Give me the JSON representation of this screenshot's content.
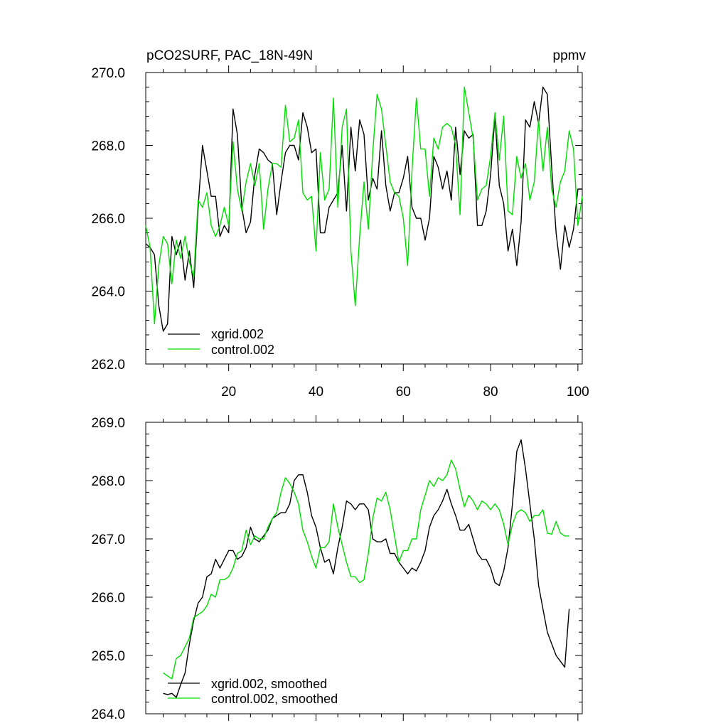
{
  "chart_data": [
    {
      "type": "line",
      "title": "pCO2SURF, PAC_18N-49N",
      "units": "ppmv",
      "xlim": [
        1,
        101
      ],
      "ylim": [
        262.0,
        270.0
      ],
      "xticks": [
        20,
        40,
        60,
        80,
        100
      ],
      "xtick_labels": [
        "20",
        "40",
        "60",
        "80",
        "100"
      ],
      "yticks": [
        262.0,
        264.0,
        266.0,
        268.0,
        270.0
      ],
      "ytick_labels": [
        "262.0",
        "264.0",
        "266.0",
        "268.0",
        "270.0"
      ],
      "legend_position": "bottom-left",
      "series": [
        {
          "name": "xgrid.002",
          "color": "#000000",
          "x": [
            1,
            2,
            3,
            4,
            5,
            6,
            7,
            8,
            9,
            10,
            11,
            12,
            13,
            14,
            15,
            16,
            17,
            18,
            19,
            20,
            21,
            22,
            23,
            24,
            25,
            26,
            27,
            28,
            29,
            30,
            31,
            32,
            33,
            34,
            35,
            36,
            37,
            38,
            39,
            40,
            41,
            42,
            43,
            44,
            45,
            46,
            47,
            48,
            49,
            50,
            51,
            52,
            53,
            54,
            55,
            56,
            57,
            58,
            59,
            60,
            61,
            62,
            63,
            64,
            65,
            66,
            67,
            68,
            69,
            70,
            71,
            72,
            73,
            74,
            75,
            76,
            77,
            78,
            79,
            80,
            81,
            82,
            83,
            84,
            85,
            86,
            87,
            88,
            89,
            90,
            91,
            92,
            93,
            94,
            95,
            96,
            97,
            98,
            99,
            100,
            101
          ],
          "values": [
            265.3,
            265.2,
            265.0,
            263.6,
            262.9,
            263.1,
            265.5,
            265.0,
            265.4,
            264.3,
            265.1,
            264.1,
            266.3,
            268.0,
            267.3,
            266.6,
            266.6,
            265.5,
            265.8,
            265.6,
            269.0,
            268.3,
            266.3,
            265.6,
            265.9,
            267.2,
            267.9,
            267.8,
            267.6,
            267.5,
            266.1,
            267.0,
            267.8,
            268.0,
            268.0,
            267.6,
            268.9,
            268.5,
            267.8,
            267.9,
            265.6,
            265.6,
            266.3,
            266.5,
            266.7,
            268.0,
            266.2,
            268.5,
            267.3,
            268.7,
            268.3,
            266.5,
            267.1,
            266.8,
            268.4,
            266.9,
            266.2,
            266.7,
            266.7,
            267.1,
            267.7,
            266.3,
            266.0,
            266.0,
            265.4,
            266.0,
            267.7,
            267.4,
            266.8,
            267.3,
            266.5,
            268.5,
            267.2,
            268.4,
            268.2,
            268.3,
            265.8,
            265.8,
            266.2,
            267.2,
            268.8,
            266.9,
            266.4,
            265.1,
            265.7,
            264.7,
            265.9,
            268.7,
            268.5,
            269.2,
            268.6,
            269.6,
            269.4,
            267.4,
            265.6,
            264.6,
            265.8,
            265.2,
            265.7,
            266.8,
            266.8
          ]
        },
        {
          "name": "control.002",
          "color": "#00dd00",
          "x": [
            1,
            2,
            3,
            4,
            5,
            6,
            7,
            8,
            9,
            10,
            11,
            12,
            13,
            14,
            15,
            16,
            17,
            18,
            19,
            20,
            21,
            22,
            23,
            24,
            25,
            26,
            27,
            28,
            29,
            30,
            31,
            32,
            33,
            34,
            35,
            36,
            37,
            38,
            39,
            40,
            41,
            42,
            43,
            44,
            45,
            46,
            47,
            48,
            49,
            50,
            51,
            52,
            53,
            54,
            55,
            56,
            57,
            58,
            59,
            60,
            61,
            62,
            63,
            64,
            65,
            66,
            67,
            68,
            69,
            70,
            71,
            72,
            73,
            74,
            75,
            76,
            77,
            78,
            79,
            80,
            81,
            82,
            83,
            84,
            85,
            86,
            87,
            88,
            89,
            90,
            91,
            92,
            93,
            94,
            95,
            96,
            97,
            98,
            99,
            100,
            101
          ],
          "values": [
            265.8,
            265.2,
            263.1,
            264.7,
            265.5,
            265.3,
            264.2,
            265.4,
            264.9,
            265.5,
            264.8,
            264.4,
            266.5,
            266.3,
            266.7,
            265.8,
            265.5,
            265.8,
            266.3,
            265.8,
            268.1,
            266.8,
            266.2,
            267.0,
            267.5,
            266.9,
            267.5,
            265.7,
            266.8,
            267.5,
            267.5,
            267.4,
            269.1,
            268.1,
            268.2,
            268.7,
            266.7,
            266.5,
            266.6,
            265.1,
            267.8,
            266.5,
            266.8,
            269.3,
            266.3,
            268.5,
            269.0,
            265.1,
            263.6,
            265.5,
            267.0,
            265.7,
            267.8,
            269.4,
            269.0,
            268.0,
            267.0,
            266.7,
            266.6,
            266.0,
            264.7,
            267.3,
            269.3,
            267.9,
            267.9,
            266.6,
            268.2,
            267.9,
            268.5,
            268.6,
            268.5,
            268.0,
            266.1,
            269.6,
            268.9,
            268.2,
            266.5,
            266.8,
            266.9,
            267.7,
            268.9,
            267.6,
            268.8,
            266.2,
            266.1,
            267.7,
            267.1,
            267.5,
            266.5,
            267.0,
            268.7,
            267.3,
            268.5,
            266.8,
            266.3,
            267.0,
            267.3,
            268.4,
            267.9,
            265.8,
            266.6
          ]
        }
      ]
    },
    {
      "type": "line",
      "ylim": [
        264.0,
        269.0
      ],
      "xlim": [
        1,
        101
      ],
      "yticks": [
        264.0,
        265.0,
        266.0,
        267.0,
        268.0,
        269.0
      ],
      "ytick_labels": [
        "264.0",
        "265.0",
        "266.0",
        "267.0",
        "268.0",
        "269.0"
      ],
      "xticks": [
        20,
        40,
        60,
        80,
        100
      ],
      "legend_position": "bottom-left",
      "series": [
        {
          "name": "xgrid.002, smoothed",
          "color": "#000000",
          "x": [
            5,
            6,
            7,
            8,
            9,
            10,
            11,
            12,
            13,
            14,
            15,
            16,
            17,
            18,
            19,
            20,
            21,
            22,
            23,
            24,
            25,
            26,
            27,
            28,
            29,
            30,
            31,
            32,
            33,
            34,
            35,
            36,
            37,
            38,
            39,
            40,
            41,
            42,
            43,
            44,
            45,
            46,
            47,
            48,
            49,
            50,
            51,
            52,
            53,
            54,
            55,
            56,
            57,
            58,
            59,
            60,
            61,
            62,
            63,
            64,
            65,
            66,
            67,
            68,
            69,
            70,
            71,
            72,
            73,
            74,
            75,
            76,
            77,
            78,
            79,
            80,
            81,
            82,
            83,
            84,
            85,
            86,
            87,
            88,
            89,
            90,
            91,
            92,
            93,
            94,
            95,
            96,
            97,
            98
          ],
          "values": [
            264.35,
            264.33,
            264.35,
            264.28,
            264.5,
            264.7,
            265.2,
            265.6,
            265.9,
            266.0,
            266.35,
            266.4,
            266.65,
            266.5,
            266.65,
            266.8,
            266.8,
            266.65,
            266.7,
            266.85,
            267.2,
            267.0,
            266.95,
            267.05,
            267.15,
            267.35,
            267.4,
            267.45,
            267.45,
            267.6,
            268.0,
            268.1,
            268.1,
            267.8,
            267.4,
            267.2,
            266.85,
            266.6,
            266.65,
            266.4,
            266.85,
            267.2,
            267.65,
            267.6,
            267.5,
            267.6,
            267.6,
            267.5,
            267.0,
            266.95,
            266.95,
            267.0,
            266.75,
            266.75,
            266.6,
            266.5,
            266.4,
            266.5,
            266.45,
            266.6,
            266.8,
            267.2,
            267.4,
            267.5,
            267.65,
            267.85,
            267.6,
            267.4,
            267.15,
            267.15,
            267.25,
            267.0,
            266.75,
            266.65,
            266.65,
            266.5,
            266.25,
            266.2,
            266.45,
            266.85,
            267.6,
            268.5,
            268.7,
            268.2,
            267.6,
            267.0,
            266.2,
            265.8,
            265.4,
            265.2,
            265.0,
            264.9,
            264.8,
            265.8
          ]
        },
        {
          "name": "control.002, smoothed",
          "color": "#00dd00",
          "x": [
            5,
            6,
            7,
            8,
            9,
            10,
            11,
            12,
            13,
            14,
            15,
            16,
            17,
            18,
            19,
            20,
            21,
            22,
            23,
            24,
            25,
            26,
            27,
            28,
            29,
            30,
            31,
            32,
            33,
            34,
            35,
            36,
            37,
            38,
            39,
            40,
            41,
            42,
            43,
            44,
            45,
            46,
            47,
            48,
            49,
            50,
            51,
            52,
            53,
            54,
            55,
            56,
            57,
            58,
            59,
            60,
            61,
            62,
            63,
            64,
            65,
            66,
            67,
            68,
            69,
            70,
            71,
            72,
            73,
            74,
            75,
            76,
            77,
            78,
            79,
            80,
            81,
            82,
            83,
            84,
            85,
            86,
            87,
            88,
            89,
            90,
            91,
            92,
            93,
            94,
            95,
            96,
            97,
            98
          ],
          "values": [
            264.7,
            264.65,
            264.6,
            264.95,
            265.0,
            265.15,
            265.3,
            265.65,
            265.7,
            265.75,
            265.85,
            266.05,
            266.0,
            266.3,
            266.3,
            266.35,
            266.5,
            266.75,
            266.8,
            267.15,
            266.9,
            267.05,
            267.0,
            267.0,
            267.2,
            267.35,
            267.45,
            267.8,
            268.05,
            267.95,
            267.8,
            267.6,
            267.15,
            266.95,
            266.7,
            266.5,
            266.85,
            266.85,
            266.95,
            267.6,
            267.2,
            266.9,
            266.6,
            266.35,
            266.35,
            266.25,
            266.3,
            266.75,
            267.35,
            267.7,
            267.65,
            267.8,
            267.5,
            267.05,
            266.6,
            266.8,
            266.8,
            267.0,
            267.0,
            267.5,
            267.75,
            268.0,
            267.9,
            268.05,
            268.0,
            268.1,
            268.35,
            268.2,
            267.85,
            267.55,
            267.75,
            267.65,
            267.5,
            267.65,
            267.6,
            267.5,
            267.6,
            267.5,
            267.25,
            266.9,
            267.25,
            267.45,
            267.5,
            267.45,
            267.3,
            267.4,
            267.4,
            267.5,
            267.1,
            267.08,
            267.3,
            267.1,
            267.05,
            267.05
          ]
        }
      ]
    }
  ]
}
